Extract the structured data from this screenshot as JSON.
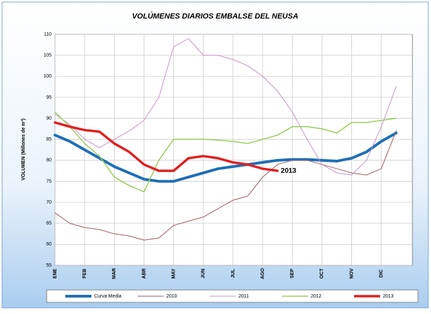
{
  "chart_data": {
    "type": "line",
    "title": "VOLÚMENES DIARIOS EMBALSE DEL NEUSA",
    "y_label": "VOLUMEN (Millones de m³)",
    "categories": [
      "ENE",
      null,
      "FEB",
      null,
      "MAR",
      null,
      "ABR",
      null,
      "MAY",
      null,
      "JUN",
      null,
      "JUL",
      null,
      "AGO",
      null,
      "SEP",
      null,
      "OCT",
      null,
      "NOV",
      null,
      "DIC",
      null
    ],
    "ylim": [
      55,
      110
    ],
    "yticks": [
      55,
      60,
      65,
      70,
      75,
      80,
      85,
      90,
      95,
      100,
      105,
      110
    ],
    "grid": true,
    "legend": "bottom",
    "series": [
      {
        "name": "Curva Media",
        "color": "#1f6fb5",
        "width": 4,
        "values": [
          86,
          84.5,
          82.5,
          80.5,
          78.5,
          77,
          75.5,
          75,
          75,
          76,
          77,
          78,
          78.5,
          79,
          79.5,
          80,
          80.2,
          80.2,
          80,
          79.8,
          80.5,
          82,
          84.5,
          86.5
        ]
      },
      {
        "name": "2010",
        "color": "#9e5a5a",
        "width": 1,
        "values": [
          67.5,
          65,
          64,
          63.5,
          62.5,
          62,
          61,
          61.5,
          64.5,
          65.5,
          66.5,
          68.5,
          70.5,
          71.5,
          76,
          79,
          80,
          80,
          79,
          78,
          77,
          76.5,
          78,
          87
        ]
      },
      {
        "name": "2011",
        "color": "#c891c8",
        "width": 1,
        "values": [
          91,
          88.5,
          85,
          83,
          85,
          87,
          89.5,
          95,
          107,
          109,
          105,
          105,
          104,
          102.5,
          100,
          96.5,
          91.5,
          85,
          79,
          77,
          76.5,
          80,
          88,
          97.5
        ]
      },
      {
        "name": "2012",
        "color": "#9acd5a",
        "width": 1.5,
        "values": [
          91.5,
          88,
          84,
          81,
          76,
          74,
          72.5,
          80,
          85,
          85,
          85,
          84.8,
          84.5,
          84,
          85,
          86,
          88,
          88,
          87.5,
          86.5,
          89,
          89,
          89.5,
          90
        ]
      },
      {
        "name": "2013",
        "color": "#e02020",
        "width": 3.5,
        "values": [
          89,
          88,
          87.2,
          86.8,
          84,
          82,
          79,
          77.5,
          77.5,
          80.5,
          81,
          80.5,
          79.5,
          79,
          78,
          77.5,
          null,
          null,
          null,
          null,
          null,
          null,
          null,
          null
        ]
      }
    ]
  }
}
